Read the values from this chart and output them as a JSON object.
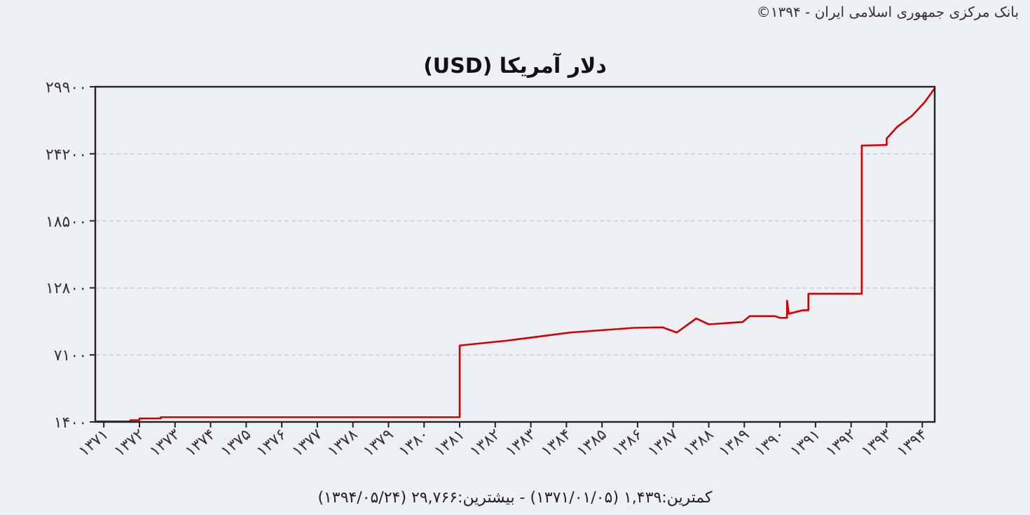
{
  "chart_data": {
    "type": "line",
    "title": "دلار آمریکا (USD)",
    "annotations": [
      "بانک مرکزی جمهوری اسلامی ایران - ۱۳۹۴©",
      "کمترین:۱,۴۳۹ (۱۳۷۱/۰۱/۰۵) - بیشترین:۲۹,۷۶۶ (۱۳۹۴/۰۵/۲۴)"
    ],
    "series": [
      {
        "color": "#d40000",
        "x": [
          1370.8,
          1371.75,
          1371.75,
          1372.0,
          1372.0,
          1372.6,
          1372.6,
          1381.0,
          1381.0,
          1382.3,
          1384.1,
          1385.9,
          1386.7,
          1387.1,
          1387.65,
          1388.0,
          1388.95,
          1389.15,
          1389.86,
          1390.0,
          1390.2,
          1390.2,
          1390.25,
          1390.65,
          1390.8,
          1390.8,
          1392.3,
          1392.3,
          1392.93,
          1393.0,
          1393.0,
          1393.3,
          1393.7,
          1394.07,
          1394.35
        ],
        "values": [
          1439,
          1439,
          1550,
          1550,
          1700,
          1700,
          1800,
          1800,
          7900,
          8300,
          9000,
          9400,
          9450,
          9000,
          10200,
          9700,
          9900,
          10400,
          10400,
          10250,
          10250,
          11700,
          10600,
          10900,
          10900,
          12300,
          12300,
          24900,
          24950,
          24950,
          25500,
          26500,
          27400,
          28600,
          29766
        ]
      }
    ],
    "xlim": [
      1370.76,
      1394.35
    ],
    "xticks": [
      {
        "value": 1371,
        "label": "۱۳۷۱"
      },
      {
        "value": 1372,
        "label": "۱۳۷۲"
      },
      {
        "value": 1373,
        "label": "۱۳۷۳"
      },
      {
        "value": 1374,
        "label": "۱۳۷۴"
      },
      {
        "value": 1375,
        "label": "۱۳۷۵"
      },
      {
        "value": 1376,
        "label": "۱۳۷۶"
      },
      {
        "value": 1377,
        "label": "۱۳۷۷"
      },
      {
        "value": 1378,
        "label": "۱۳۷۸"
      },
      {
        "value": 1379,
        "label": "۱۳۷۹"
      },
      {
        "value": 1380,
        "label": "۱۳۸۰"
      },
      {
        "value": 1381,
        "label": "۱۳۸۱"
      },
      {
        "value": 1382,
        "label": "۱۳۸۲"
      },
      {
        "value": 1383,
        "label": "۱۳۸۳"
      },
      {
        "value": 1384,
        "label": "۱۳۸۴"
      },
      {
        "value": 1385,
        "label": "۱۳۸۵"
      },
      {
        "value": 1386,
        "label": "۱۳۸۶"
      },
      {
        "value": 1387,
        "label": "۱۳۸۷"
      },
      {
        "value": 1388,
        "label": "۱۳۸۸"
      },
      {
        "value": 1389,
        "label": "۱۳۸۹"
      },
      {
        "value": 1390,
        "label": "۱۳۹۰"
      },
      {
        "value": 1391,
        "label": "۱۳۹۱"
      },
      {
        "value": 1392,
        "label": "۱۳۹۲"
      },
      {
        "value": 1393,
        "label": "۱۳۹۳"
      },
      {
        "value": 1394,
        "label": "۱۳۹۴"
      }
    ],
    "ylim": [
      1400,
      29900
    ],
    "yticks": [
      {
        "value": 1400,
        "label": "۱۴۰۰"
      },
      {
        "value": 7100,
        "label": "۷۱۰۰"
      },
      {
        "value": 12800,
        "label": "۱۲۸۰۰"
      },
      {
        "value": 18500,
        "label": "۱۸۵۰۰"
      },
      {
        "value": 24200,
        "label": "۲۴۲۰۰"
      },
      {
        "value": 29900,
        "label": "۲۹۹۰۰"
      }
    ],
    "grid": "y",
    "line_style": "solid"
  }
}
